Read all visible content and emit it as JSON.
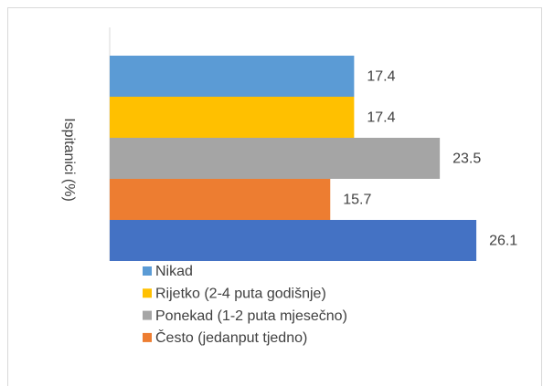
{
  "chart_data": {
    "type": "barh",
    "y_label": "Ispitanici (%)",
    "xlim": [
      0,
      30
    ],
    "series": [
      {
        "name": "Nikad",
        "color": "#5b9bd5",
        "values": [
          17.4
        ]
      },
      {
        "name": "Rijetko (2-4 puta godišnje)",
        "color": "#ffc000",
        "values": [
          17.4
        ]
      },
      {
        "name": "Ponekad (1-2 puta mjesečno)",
        "color": "#a5a5a5",
        "values": [
          23.5
        ]
      },
      {
        "name": "Često (jedanput tjedno)",
        "color": "#ed7d31",
        "values": [
          15.7
        ]
      },
      {
        "color": "#4472c4",
        "values": [
          26.1
        ]
      }
    ]
  }
}
